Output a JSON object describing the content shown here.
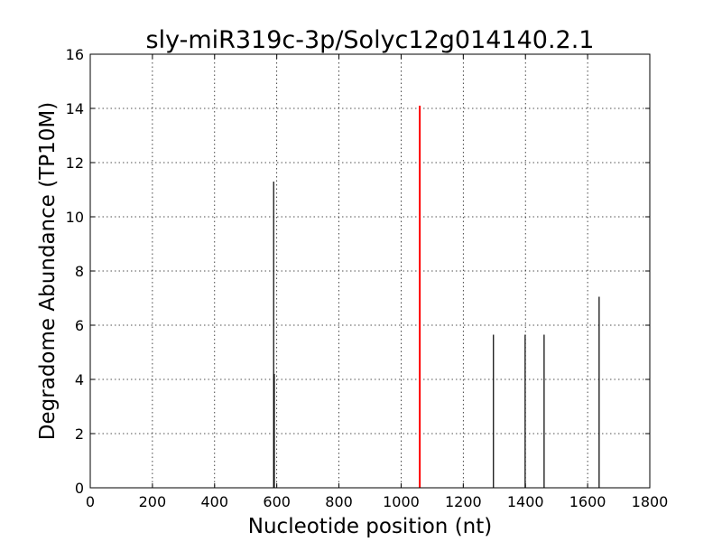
{
  "chart_data": {
    "type": "bar",
    "title": "sly-miR319c-3p/Solyc12g014140.2.1",
    "xlabel": "Nucleotide position (nt)",
    "ylabel": "Degradome Abundance (TP10M)",
    "xlim": [
      0,
      1800
    ],
    "ylim": [
      0,
      16
    ],
    "xticks": [
      0,
      200,
      400,
      600,
      800,
      1000,
      1200,
      1400,
      1600,
      1800
    ],
    "yticks": [
      0,
      2,
      4,
      6,
      8,
      10,
      12,
      14,
      16
    ],
    "grid": true,
    "series": [
      {
        "color": "#000000",
        "points": [
          {
            "x": 590,
            "y": 11.3
          },
          {
            "x": 592,
            "y": 4.2
          },
          {
            "x": 1297,
            "y": 5.65
          },
          {
            "x": 1399,
            "y": 5.65
          },
          {
            "x": 1460,
            "y": 5.65
          },
          {
            "x": 1637,
            "y": 7.05
          }
        ]
      },
      {
        "color": "#ff0000",
        "points": [
          {
            "x": 1060,
            "y": 14.1
          }
        ]
      }
    ]
  }
}
